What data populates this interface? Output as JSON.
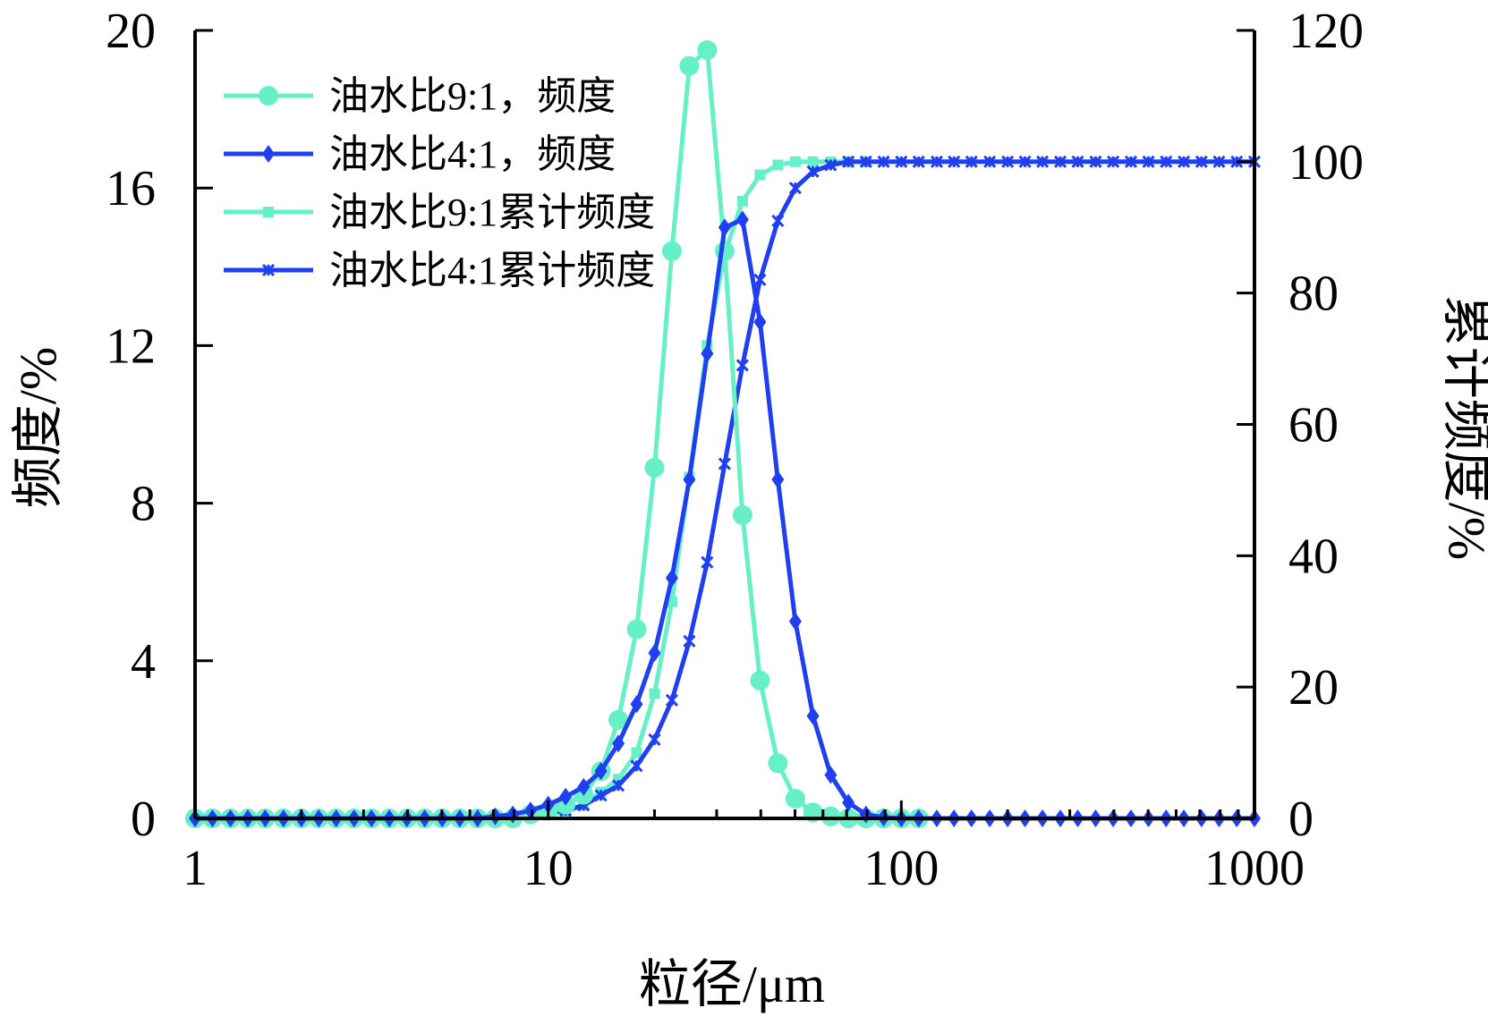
{
  "chart_data": {
    "type": "line",
    "xlabel": "粒径/μm",
    "ylabel_left": "频度/%",
    "ylabel_right": "累计频度/%",
    "xscale": "log",
    "xlim": [
      1,
      1000
    ],
    "ylim_left": [
      0,
      20
    ],
    "ylim_right": [
      0,
      120
    ],
    "x_ticks": [
      "1",
      "10",
      "100",
      "1000"
    ],
    "y_ticks_left": [
      "0",
      "4",
      "8",
      "12",
      "16",
      "20"
    ],
    "y_ticks_right": [
      "0",
      "20",
      "40",
      "60",
      "80",
      "100",
      "120"
    ],
    "legend_position": "top-left",
    "series": [
      {
        "name": "油水比9:1，频度",
        "axis": "left",
        "color": "#66f0c8",
        "marker": "circle",
        "x": [
          1,
          1.12,
          1.26,
          1.41,
          1.58,
          1.78,
          2,
          2.24,
          2.51,
          2.82,
          3.16,
          3.55,
          3.98,
          4.47,
          5.01,
          5.62,
          6.31,
          7.08,
          7.94,
          8.91,
          10,
          11.2,
          12.6,
          14.1,
          15.8,
          17.8,
          20,
          22.4,
          25.1,
          28.2,
          31.6,
          35.5,
          39.8,
          44.7,
          50.1,
          56.2,
          63.1,
          70.8,
          79.4,
          89.1,
          100,
          112
        ],
        "y": [
          0,
          0,
          0,
          0,
          0,
          0,
          0,
          0,
          0,
          0,
          0,
          0,
          0,
          0,
          0,
          0,
          0,
          0,
          0,
          0.1,
          0.2,
          0.35,
          0.6,
          1.2,
          2.5,
          4.8,
          8.9,
          14.4,
          19.1,
          19.5,
          14.4,
          7.7,
          3.5,
          1.4,
          0.5,
          0.15,
          0.05,
          0,
          0,
          0,
          0,
          0
        ]
      },
      {
        "name": "油水比4:1，频度",
        "axis": "left",
        "color": "#1f3ff0",
        "marker": "diamond",
        "x": [
          1,
          1.12,
          1.26,
          1.41,
          1.58,
          1.78,
          2,
          2.24,
          2.51,
          2.82,
          3.16,
          3.55,
          3.98,
          4.47,
          5.01,
          5.62,
          6.31,
          7.08,
          7.94,
          8.91,
          10,
          11.2,
          12.6,
          14.1,
          15.8,
          17.8,
          20,
          22.4,
          25.1,
          28.2,
          31.6,
          35.5,
          39.8,
          44.7,
          50.1,
          56.2,
          63.1,
          70.8,
          79.4,
          89.1,
          100,
          112,
          126,
          141,
          158,
          178,
          200,
          224,
          251,
          282,
          316,
          355,
          398,
          447,
          501,
          562,
          631,
          708,
          794,
          891,
          1000
        ],
        "y": [
          0,
          0,
          0,
          0,
          0,
          0,
          0,
          0,
          0,
          0,
          0,
          0,
          0,
          0,
          0,
          0,
          0,
          0.05,
          0.1,
          0.2,
          0.35,
          0.55,
          0.8,
          1.2,
          1.9,
          2.9,
          4.2,
          6.1,
          8.6,
          11.8,
          15.0,
          15.2,
          12.6,
          8.6,
          5.0,
          2.6,
          1.1,
          0.4,
          0.1,
          0.02,
          0,
          0,
          0,
          0,
          0,
          0,
          0,
          0,
          0,
          0,
          0,
          0,
          0,
          0,
          0,
          0,
          0,
          0,
          0,
          0,
          0
        ]
      },
      {
        "name": "油水比9:1累计频度",
        "axis": "right",
        "color": "#66f0c8",
        "marker": "square",
        "x": [
          1,
          1.12,
          1.26,
          1.41,
          1.58,
          1.78,
          2,
          2.24,
          2.51,
          2.82,
          3.16,
          3.55,
          3.98,
          4.47,
          5.01,
          5.62,
          6.31,
          7.08,
          7.94,
          8.91,
          10,
          11.2,
          12.6,
          14.1,
          15.8,
          17.8,
          20,
          22.4,
          25.1,
          28.2,
          31.6,
          35.5,
          39.8,
          44.7,
          50.1,
          56.2,
          63.1,
          70.8,
          79.4
        ],
        "y": [
          0,
          0,
          0,
          0,
          0,
          0,
          0,
          0,
          0,
          0,
          0,
          0,
          0,
          0,
          0,
          0,
          0,
          0,
          0,
          0.2,
          0.5,
          1,
          2,
          4,
          6,
          10,
          19,
          33,
          52,
          72,
          86,
          94,
          98,
          99.5,
          100,
          100,
          100,
          100,
          100
        ]
      },
      {
        "name": "油水比4:1累计频度",
        "axis": "right",
        "color": "#1f3ff0",
        "marker": "star",
        "x": [
          1,
          1.12,
          1.26,
          1.41,
          1.58,
          1.78,
          2,
          2.24,
          2.51,
          2.82,
          3.16,
          3.55,
          3.98,
          4.47,
          5.01,
          5.62,
          6.31,
          7.08,
          7.94,
          8.91,
          10,
          11.2,
          12.6,
          14.1,
          15.8,
          17.8,
          20,
          22.4,
          25.1,
          28.2,
          31.6,
          35.5,
          39.8,
          44.7,
          50.1,
          56.2,
          63.1,
          70.8,
          79.4,
          89.1,
          100,
          112,
          126,
          141,
          158,
          178,
          200,
          224,
          251,
          282,
          316,
          355,
          398,
          447,
          501,
          562,
          631,
          708,
          794,
          891,
          1000
        ],
        "y": [
          0,
          0,
          0,
          0,
          0,
          0,
          0,
          0,
          0,
          0,
          0,
          0,
          0,
          0,
          0,
          0,
          0,
          0,
          0.3,
          0.6,
          0.8,
          1.2,
          2,
          3.5,
          5,
          8,
          12,
          18,
          27,
          39,
          54,
          69,
          82,
          91,
          96,
          98.5,
          99.5,
          100,
          100,
          100,
          100,
          100,
          100,
          100,
          100,
          100,
          100,
          100,
          100,
          100,
          100,
          100,
          100,
          100,
          100,
          100,
          100,
          100,
          100,
          100,
          100
        ]
      }
    ]
  }
}
